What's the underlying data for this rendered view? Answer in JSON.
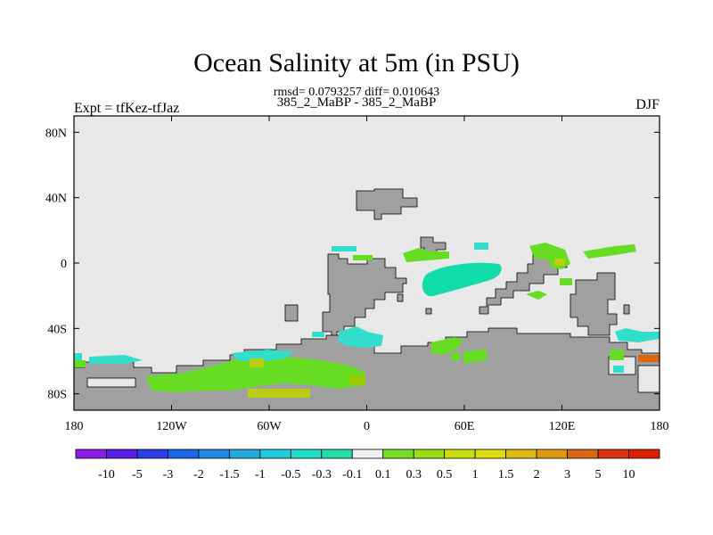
{
  "title": "Ocean Salinity at 5m (in PSU)",
  "stats": "rmsd= 0.0793257 diff= 0.010643",
  "subtitle": "385_2_MaBP - 385_2_MaBP",
  "left_label": "Expt = tfKez-tfJaz",
  "right_label": "DJF",
  "map": {
    "lon_range": [
      -180,
      180
    ],
    "lat_range": [
      -90,
      90
    ],
    "lon_ticks": [
      {
        "value": -180,
        "label": "180"
      },
      {
        "value": -120,
        "label": "120W"
      },
      {
        "value": -60,
        "label": "60W"
      },
      {
        "value": 0,
        "label": "0"
      },
      {
        "value": 60,
        "label": "60E"
      },
      {
        "value": 120,
        "label": "120E"
      },
      {
        "value": 180,
        "label": "180"
      }
    ],
    "lat_ticks": [
      {
        "value": 80,
        "label": "80N"
      },
      {
        "value": 40,
        "label": "40N"
      },
      {
        "value": 0,
        "label": "0"
      },
      {
        "value": -40,
        "label": "40S"
      },
      {
        "value": -80,
        "label": "80S"
      }
    ],
    "colors": {
      "ocean_background": "#e8e8e8",
      "land": "#a0a0a0",
      "green": "#66dd22",
      "teal": "#11ddaa",
      "cyan": "#33ddcc",
      "olive": "#bbcc11",
      "yellow_green": "#99cc00"
    }
  },
  "colorbar": {
    "labels": [
      "-10",
      "-5",
      "-3",
      "-2",
      "-1.5",
      "-1",
      "-0.5",
      "-0.3",
      "-0.1",
      "0.1",
      "0.3",
      "0.5",
      "1",
      "1.5",
      "2",
      "3",
      "5",
      "10"
    ],
    "colors": [
      "#8a1ce6",
      "#5a1ee6",
      "#2a40e6",
      "#1a66e6",
      "#2288e6",
      "#22aadd",
      "#22ccdd",
      "#22ddcc",
      "#22ddaa",
      "#f0f0f0",
      "#77dd22",
      "#99dd11",
      "#ccdd11",
      "#dddd11",
      "#ddbb11",
      "#dd9911",
      "#dd6611",
      "#dd3311",
      "#dd2200"
    ]
  }
}
